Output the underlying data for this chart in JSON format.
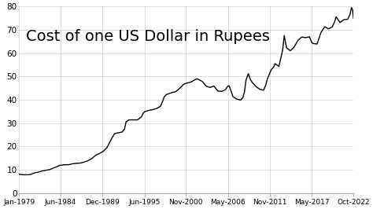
{
  "title": "Cost of one US Dollar in Rupees",
  "title_fontsize": 14,
  "line_color": "#000000",
  "line_width": 1.0,
  "background_color": "#ffffff",
  "ylim": [
    0,
    80
  ],
  "yticks": [
    0,
    10,
    20,
    30,
    40,
    50,
    60,
    70,
    80
  ],
  "xtick_labels": [
    "Jan-1979",
    "Jun-1984",
    "Dec-1989",
    "Jun-1995",
    "Nov-2000",
    "May-2006",
    "Nov-2011",
    "May-2017",
    "Oct-2022"
  ],
  "xtick_years": [
    1979.0,
    1984.42,
    1989.92,
    1995.42,
    2000.83,
    2006.33,
    2011.83,
    2017.33,
    2022.75
  ],
  "xlim": [
    1979.0,
    2022.75
  ],
  "data_points": [
    [
      1979.0,
      8.1
    ],
    [
      1979.5,
      7.9
    ],
    [
      1980.0,
      7.9
    ],
    [
      1980.5,
      8.0
    ],
    [
      1981.0,
      8.7
    ],
    [
      1981.5,
      9.0
    ],
    [
      1982.0,
      9.5
    ],
    [
      1982.5,
      9.8
    ],
    [
      1983.0,
      10.1
    ],
    [
      1983.5,
      10.8
    ],
    [
      1984.0,
      11.4
    ],
    [
      1984.3,
      11.9
    ],
    [
      1984.5,
      12.0
    ],
    [
      1985.0,
      12.2
    ],
    [
      1985.5,
      12.2
    ],
    [
      1986.0,
      12.6
    ],
    [
      1986.5,
      12.8
    ],
    [
      1987.0,
      12.9
    ],
    [
      1987.5,
      13.3
    ],
    [
      1988.0,
      13.9
    ],
    [
      1988.5,
      14.8
    ],
    [
      1989.0,
      16.2
    ],
    [
      1989.5,
      17.0
    ],
    [
      1990.0,
      17.9
    ],
    [
      1990.5,
      19.5
    ],
    [
      1991.0,
      22.7
    ],
    [
      1991.3,
      24.5
    ],
    [
      1991.5,
      25.5
    ],
    [
      1992.0,
      25.9
    ],
    [
      1992.5,
      26.2
    ],
    [
      1992.8,
      27.5
    ],
    [
      1993.0,
      30.5
    ],
    [
      1993.3,
      31.3
    ],
    [
      1993.5,
      31.4
    ],
    [
      1994.0,
      31.4
    ],
    [
      1994.5,
      31.4
    ],
    [
      1995.0,
      32.7
    ],
    [
      1995.3,
      34.5
    ],
    [
      1995.5,
      35.0
    ],
    [
      1996.0,
      35.5
    ],
    [
      1996.5,
      35.8
    ],
    [
      1997.0,
      36.3
    ],
    [
      1997.5,
      37.2
    ],
    [
      1997.8,
      39.5
    ],
    [
      1998.0,
      41.3
    ],
    [
      1998.3,
      42.3
    ],
    [
      1998.5,
      42.5
    ],
    [
      1999.0,
      43.1
    ],
    [
      1999.5,
      43.5
    ],
    [
      2000.0,
      44.9
    ],
    [
      2000.3,
      45.8
    ],
    [
      2000.5,
      46.6
    ],
    [
      2001.0,
      47.2
    ],
    [
      2001.5,
      47.6
    ],
    [
      2002.0,
      48.6
    ],
    [
      2002.3,
      49.0
    ],
    [
      2002.5,
      48.7
    ],
    [
      2003.0,
      47.8
    ],
    [
      2003.5,
      45.8
    ],
    [
      2004.0,
      45.3
    ],
    [
      2004.5,
      45.9
    ],
    [
      2005.0,
      43.8
    ],
    [
      2005.5,
      43.6
    ],
    [
      2006.0,
      44.3
    ],
    [
      2006.3,
      45.8
    ],
    [
      2006.5,
      46.0
    ],
    [
      2007.0,
      41.3
    ],
    [
      2007.5,
      40.3
    ],
    [
      2008.0,
      39.9
    ],
    [
      2008.3,
      41.0
    ],
    [
      2008.5,
      43.5
    ],
    [
      2008.7,
      48.5
    ],
    [
      2009.0,
      51.2
    ],
    [
      2009.3,
      48.5
    ],
    [
      2009.5,
      47.5
    ],
    [
      2010.0,
      45.7
    ],
    [
      2010.5,
      44.5
    ],
    [
      2011.0,
      44.1
    ],
    [
      2011.3,
      46.5
    ],
    [
      2011.5,
      49.0
    ],
    [
      2012.0,
      52.9
    ],
    [
      2012.3,
      54.0
    ],
    [
      2012.5,
      55.5
    ],
    [
      2013.0,
      54.3
    ],
    [
      2013.3,
      58.5
    ],
    [
      2013.5,
      61.5
    ],
    [
      2013.7,
      67.5
    ],
    [
      2014.0,
      62.3
    ],
    [
      2014.5,
      61.0
    ],
    [
      2015.0,
      62.6
    ],
    [
      2015.5,
      65.5
    ],
    [
      2016.0,
      66.9
    ],
    [
      2016.5,
      66.6
    ],
    [
      2017.0,
      67.0
    ],
    [
      2017.3,
      64.5
    ],
    [
      2017.5,
      64.1
    ],
    [
      2018.0,
      63.9
    ],
    [
      2018.5,
      68.8
    ],
    [
      2019.0,
      71.3
    ],
    [
      2019.5,
      70.4
    ],
    [
      2020.0,
      71.3
    ],
    [
      2020.3,
      73.5
    ],
    [
      2020.5,
      75.5
    ],
    [
      2021.0,
      73.1
    ],
    [
      2021.5,
      74.3
    ],
    [
      2022.0,
      74.5
    ],
    [
      2022.3,
      76.5
    ],
    [
      2022.5,
      79.5
    ],
    [
      2022.65,
      78.5
    ],
    [
      2022.75,
      75.0
    ]
  ]
}
